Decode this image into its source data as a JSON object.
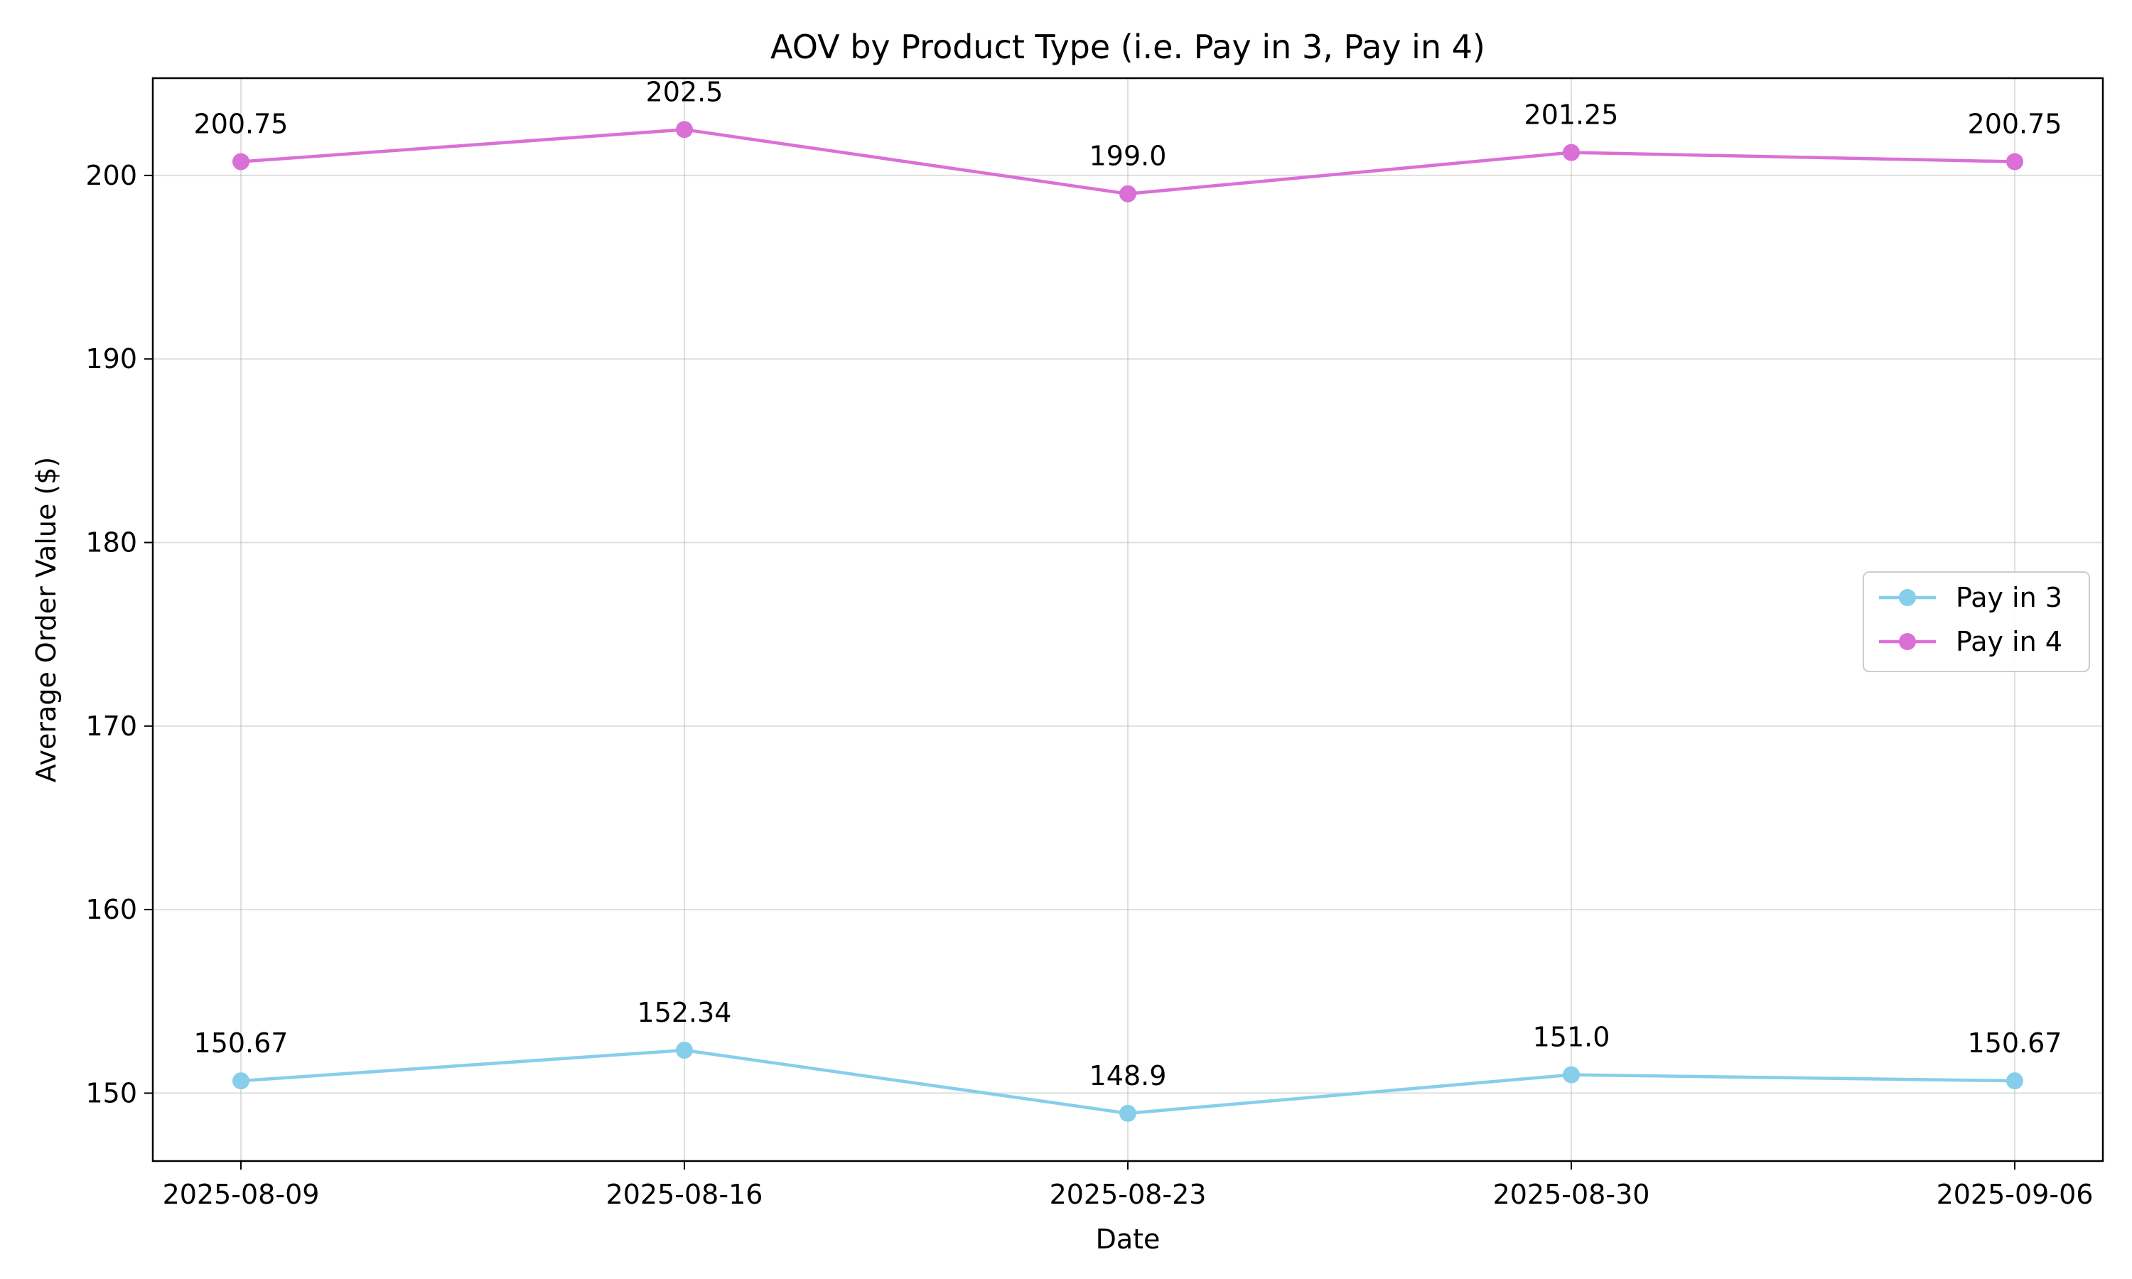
{
  "chart_data": {
    "type": "line",
    "title": "AOV by Product Type (i.e. Pay in 3, Pay in 4)",
    "xlabel": "Date",
    "ylabel": "Average Order Value ($)",
    "x": [
      "2025-08-09",
      "2025-08-16",
      "2025-08-23",
      "2025-08-30",
      "2025-09-06"
    ],
    "ylim": [
      146.3,
      205.3
    ],
    "yticks": [
      150,
      160,
      170,
      180,
      190,
      200
    ],
    "grid": true,
    "legend_position": "center-right",
    "series": [
      {
        "name": "Pay in 3",
        "color": "#87ceeb",
        "values": [
          150.67,
          152.34,
          148.9,
          151.0,
          150.67
        ],
        "labels": [
          "150.67",
          "152.34",
          "148.9",
          "151.0",
          "150.67"
        ]
      },
      {
        "name": "Pay in 4",
        "color": "#da70d6",
        "values": [
          200.75,
          202.5,
          199.0,
          201.25,
          200.75
        ],
        "labels": [
          "200.75",
          "202.5",
          "199.0",
          "201.25",
          "200.75"
        ]
      }
    ]
  }
}
